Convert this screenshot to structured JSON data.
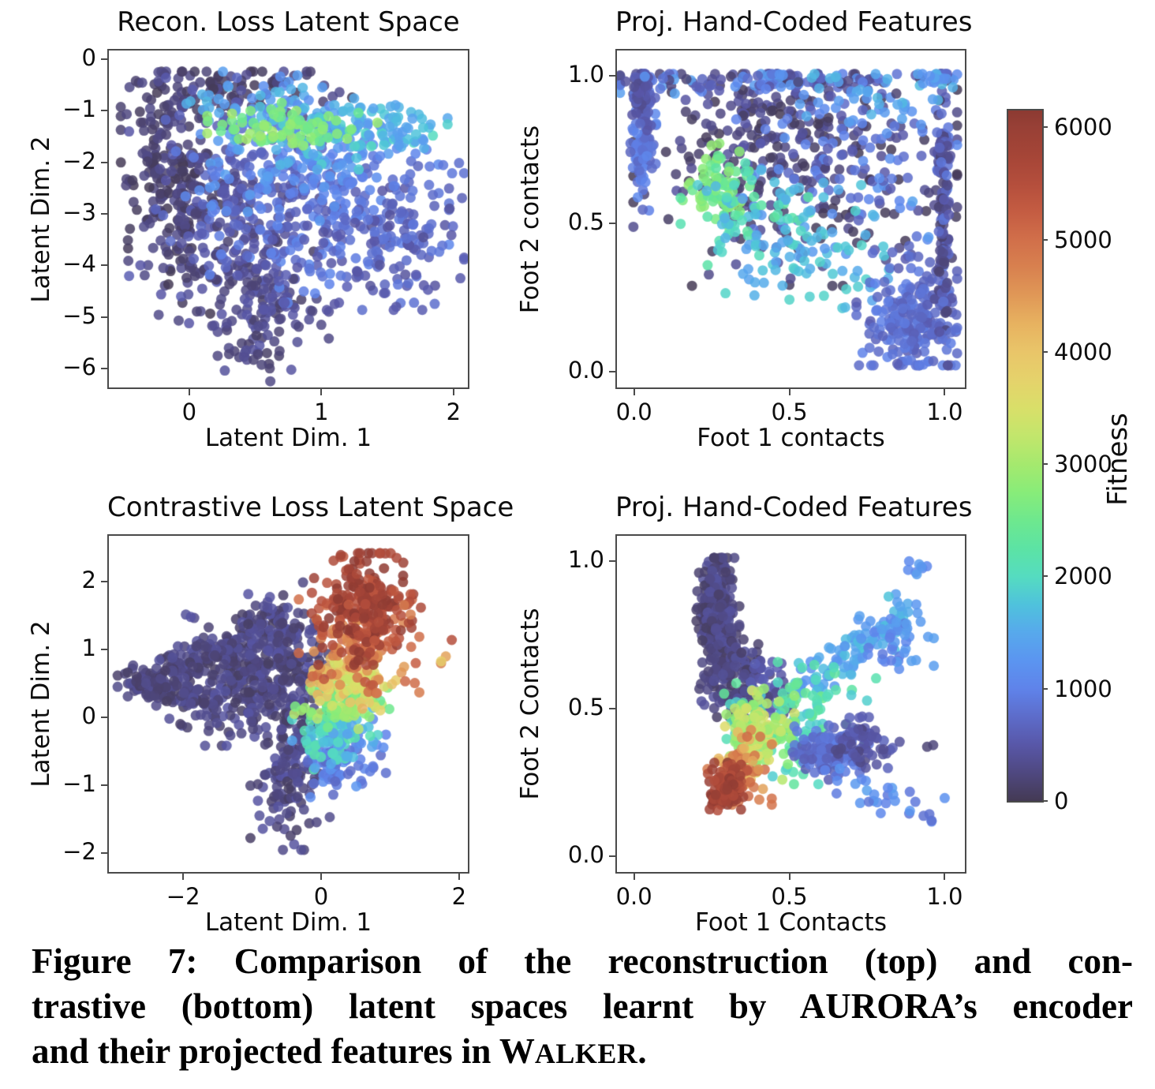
{
  "colorbar": {
    "label": "Fitness",
    "vmin": 0,
    "vmax": 6150,
    "tick_values": [
      0,
      1000,
      2000,
      3000,
      4000,
      5000,
      6000
    ],
    "tick_labels": [
      "0",
      "1000",
      "2000",
      "3000",
      "4000",
      "5000",
      "6000"
    ],
    "stops": [
      [
        0,
        "#443a54"
      ],
      [
        250,
        "#4f4880"
      ],
      [
        500,
        "#5857a8"
      ],
      [
        750,
        "#5d6cca"
      ],
      [
        1000,
        "#5f83ea"
      ],
      [
        1250,
        "#5b95f0"
      ],
      [
        1500,
        "#57a9ec"
      ],
      [
        1750,
        "#4fc2dc"
      ],
      [
        2000,
        "#55dcc0"
      ],
      [
        2250,
        "#5ce3a4"
      ],
      [
        2500,
        "#6ee88e"
      ],
      [
        2750,
        "#88ec79"
      ],
      [
        3000,
        "#a5e96e"
      ],
      [
        3250,
        "#c2e66c"
      ],
      [
        3500,
        "#d9df69"
      ],
      [
        3750,
        "#e5d26b"
      ],
      [
        4000,
        "#e9c569"
      ],
      [
        4250,
        "#e7b260"
      ],
      [
        4500,
        "#e09857"
      ],
      [
        4750,
        "#d8814f"
      ],
      [
        5000,
        "#d16f4a"
      ],
      [
        5250,
        "#c45c42"
      ],
      [
        5500,
        "#b44e3c"
      ],
      [
        5750,
        "#a54537"
      ],
      [
        6000,
        "#984036"
      ],
      [
        6150,
        "#8c3a32"
      ]
    ]
  },
  "caption": {
    "line1": "Figure 7: Comparison of the reconstruction (top) and con-",
    "line2": "trastive (bottom) latent spaces learnt by AURORA’s encoder",
    "line3_prefix": "and their projected features in ",
    "walker_cap": "W",
    "walker_rest": "ALKER",
    "line3_suffix": "."
  },
  "chart_data": [
    {
      "type": "scatter",
      "title": "Recon. Loss Latent Space",
      "xlabel": "Latent Dim. 1",
      "ylabel": "Latent Dim. 2",
      "xlim": [
        -0.62,
        2.12
      ],
      "ylim": [
        -6.4,
        0.2
      ],
      "xticks": {
        "values": [
          0,
          1,
          2
        ],
        "labels": [
          "0",
          "1",
          "2"
        ]
      },
      "yticks": {
        "values": [
          0,
          -1,
          -2,
          -3,
          -4,
          -5,
          -6
        ],
        "labels": [
          "0",
          "−1",
          "−2",
          "−3",
          "−4",
          "−5",
          "−6"
        ]
      },
      "clip": {
        "x": [
          -0.58,
          2.08
        ],
        "y": [
          -6.25,
          -0.24
        ]
      },
      "clusters": [
        {
          "n": 120,
          "cx": -0.15,
          "cy": -1.6,
          "sx": 0.16,
          "sy": 0.9,
          "f": [
            0,
            350
          ]
        },
        {
          "n": 120,
          "cx": -0.05,
          "cy": -3.0,
          "sx": 0.18,
          "sy": 0.9,
          "f": [
            0,
            350
          ]
        },
        {
          "n": 150,
          "cx": 0.35,
          "cy": -3.6,
          "sx": 0.35,
          "sy": 0.75,
          "f": [
            100,
            600
          ]
        },
        {
          "n": 90,
          "cx": 0.55,
          "cy": -5.1,
          "sx": 0.22,
          "sy": 0.5,
          "f": [
            100,
            500
          ]
        },
        {
          "n": 70,
          "cx": 0.45,
          "cy": -0.55,
          "sx": 0.35,
          "sy": 0.25,
          "f": [
            0,
            400
          ]
        },
        {
          "n": 110,
          "cx": 0.35,
          "cy": -2.2,
          "sx": 0.35,
          "sy": 0.8,
          "f": [
            300,
            800
          ]
        },
        {
          "n": 200,
          "cx": 1.0,
          "cy": -3.0,
          "sx": 0.42,
          "sy": 0.75,
          "f": [
            500,
            1100
          ]
        },
        {
          "n": 120,
          "cx": 1.45,
          "cy": -3.6,
          "sx": 0.28,
          "sy": 0.55,
          "f": [
            400,
            900
          ]
        },
        {
          "n": 110,
          "cx": 0.85,
          "cy": -2.1,
          "sx": 0.45,
          "sy": 0.45,
          "f": [
            900,
            1400
          ]
        },
        {
          "n": 80,
          "cx": 0.6,
          "cy": -0.95,
          "sx": 0.3,
          "sy": 0.35,
          "f": [
            1100,
            1700
          ]
        },
        {
          "n": 80,
          "cx": 1.15,
          "cy": -1.45,
          "sx": 0.35,
          "sy": 0.3,
          "f": [
            1400,
            2000
          ]
        },
        {
          "n": 40,
          "cx": 1.5,
          "cy": -1.35,
          "sx": 0.2,
          "sy": 0.25,
          "f": [
            1300,
            1800
          ]
        },
        {
          "n": 75,
          "cx": 0.78,
          "cy": -1.35,
          "sx": 0.28,
          "sy": 0.22,
          "f": [
            2400,
            3000
          ]
        },
        {
          "n": 12,
          "cx": 1.85,
          "cy": -2.35,
          "sx": 0.18,
          "sy": 0.25,
          "f": [
            600,
            900
          ]
        }
      ]
    },
    {
      "type": "scatter",
      "title": "Proj. Hand-Coded Features",
      "xlabel": "Foot 1 contacts",
      "ylabel": "Foot 2 contacts",
      "xlim": [
        -0.06,
        1.07
      ],
      "ylim": [
        -0.06,
        1.09
      ],
      "xticks": {
        "values": [
          0,
          0.5,
          1
        ],
        "labels": [
          "0.0",
          "0.5",
          "1.0"
        ]
      },
      "yticks": {
        "values": [
          0,
          0.5,
          1
        ],
        "labels": [
          "0.0",
          "0.5",
          "1.0"
        ]
      },
      "clip": {
        "x": [
          -0.045,
          1.04
        ],
        "y": [
          0.02,
          1.005
        ]
      },
      "clusters": [
        {
          "n": 240,
          "cx": 0.55,
          "cy": 0.68,
          "sx": 0.24,
          "sy": 0.17,
          "f": [
            0,
            450
          ]
        },
        {
          "n": 60,
          "cx": 0.35,
          "cy": 0.85,
          "sx": 0.12,
          "sy": 0.08,
          "f": [
            0,
            500
          ]
        },
        {
          "n": 110,
          "cx": 0.72,
          "cy": 0.72,
          "sx": 0.17,
          "sy": 0.16,
          "f": [
            500,
            1300
          ]
        },
        {
          "n": 100,
          "cx": 0.03,
          "cy": 0.82,
          "sx": 0.018,
          "sy": 0.12,
          "f": [
            650,
            1100
          ]
        },
        {
          "n": 60,
          "cx": 0.02,
          "cy": 0.93,
          "sx": 0.015,
          "sy": 0.05,
          "f": [
            300,
            700
          ]
        },
        {
          "n": 120,
          "cx": 0.45,
          "cy": 0.985,
          "sx": 0.27,
          "sy": 0.02,
          "f": [
            150,
            1400
          ]
        },
        {
          "n": 70,
          "cx": 0.27,
          "cy": 0.61,
          "sx": 0.05,
          "sy": 0.07,
          "f": [
            2300,
            2900
          ]
        },
        {
          "n": 60,
          "cx": 0.38,
          "cy": 0.52,
          "sx": 0.1,
          "sy": 0.08,
          "f": [
            1600,
            2300
          ]
        },
        {
          "n": 90,
          "cx": 0.58,
          "cy": 0.4,
          "sx": 0.16,
          "sy": 0.1,
          "f": [
            1300,
            2000
          ]
        },
        {
          "n": 210,
          "cx": 0.9,
          "cy": 0.18,
          "sx": 0.08,
          "sy": 0.1,
          "f": [
            550,
            1000
          ]
        },
        {
          "n": 140,
          "cx": 0.995,
          "cy": 0.55,
          "sx": 0.012,
          "sy": 0.27,
          "f": [
            100,
            900
          ]
        },
        {
          "n": 40,
          "cx": 0.75,
          "cy": 0.95,
          "sx": 0.12,
          "sy": 0.05,
          "f": [
            1200,
            1700
          ]
        },
        {
          "n": 12,
          "cx": 0.97,
          "cy": 0.99,
          "sx": 0.02,
          "sy": 0.01,
          "f": [
            1100,
            1600
          ]
        }
      ]
    },
    {
      "type": "scatter",
      "title": "Contrastive Loss Latent Space",
      "xlabel": "Latent Dim. 1",
      "ylabel": "Latent Dim. 2",
      "xlim": [
        -3.1,
        2.15
      ],
      "ylim": [
        -2.3,
        2.7
      ],
      "xticks": {
        "values": [
          -2,
          0,
          2
        ],
        "labels": [
          "−2",
          "0",
          "2"
        ]
      },
      "yticks": {
        "values": [
          2,
          1,
          0,
          -1,
          -2
        ],
        "labels": [
          "2",
          "1",
          "0",
          "−1",
          "−2"
        ]
      },
      "clip": {
        "x": [
          -2.95,
          2.05
        ],
        "y": [
          -1.95,
          2.42
        ]
      },
      "clusters": [
        {
          "n": 320,
          "cx": -1.05,
          "cy": 0.55,
          "sx": 0.5,
          "sy": 0.42,
          "f": [
            80,
            480
          ]
        },
        {
          "n": 70,
          "line": [
            -2.7,
            0.5,
            -1.2,
            1.1
          ],
          "jx": 0.12,
          "jy": 0.12,
          "f": [
            80,
            450
          ]
        },
        {
          "n": 50,
          "line": [
            -2.7,
            0.45,
            -1.3,
            0.1
          ],
          "jx": 0.12,
          "jy": 0.1,
          "f": [
            80,
            450
          ]
        },
        {
          "n": 60,
          "cx": -2.35,
          "cy": 0.48,
          "sx": 0.28,
          "sy": 0.14,
          "f": [
            80,
            400
          ]
        },
        {
          "n": 90,
          "cx": -0.6,
          "cy": 1.3,
          "sx": 0.25,
          "sy": 0.3,
          "f": [
            80,
            480
          ]
        },
        {
          "n": 130,
          "cx": -0.45,
          "cy": -0.85,
          "sx": 0.25,
          "sy": 0.5,
          "f": [
            80,
            480
          ]
        },
        {
          "n": 60,
          "cx": -0.35,
          "cy": 0.1,
          "sx": 0.35,
          "sy": 0.3,
          "f": [
            80,
            480
          ]
        },
        {
          "n": 80,
          "cx": 0.25,
          "cy": -0.6,
          "sx": 0.3,
          "sy": 0.25,
          "f": [
            700,
            1300
          ]
        },
        {
          "n": 90,
          "cx": 0.2,
          "cy": -0.2,
          "sx": 0.27,
          "sy": 0.25,
          "f": [
            1400,
            2200
          ]
        },
        {
          "n": 95,
          "cx": 0.3,
          "cy": 0.25,
          "sx": 0.3,
          "sy": 0.2,
          "f": [
            2400,
            3200
          ]
        },
        {
          "n": 90,
          "cx": 0.35,
          "cy": 0.6,
          "sx": 0.32,
          "sy": 0.22,
          "f": [
            3300,
            4300
          ]
        },
        {
          "n": 130,
          "cx": 0.55,
          "cy": 1.05,
          "sx": 0.38,
          "sy": 0.3,
          "f": [
            4400,
            5400
          ]
        },
        {
          "n": 210,
          "cx": 0.6,
          "cy": 1.65,
          "sx": 0.32,
          "sy": 0.38,
          "f": [
            5300,
            6200
          ]
        },
        {
          "n": 8,
          "cx": 1.25,
          "cy": 1.4,
          "sx": 0.28,
          "sy": 0.3,
          "f": [
            4800,
            5800
          ]
        },
        {
          "n": 3,
          "cx": 1.75,
          "cy": 0.88,
          "sx": 0.15,
          "sy": 0.1,
          "f": [
            3800,
            4900
          ]
        }
      ]
    },
    {
      "type": "scatter",
      "title": "Proj. Hand-Coded Features",
      "xlabel": "Foot 1 Contacts",
      "ylabel": "Foot 2 Contacts",
      "xlim": [
        -0.06,
        1.07
      ],
      "ylim": [
        -0.06,
        1.09
      ],
      "xticks": {
        "values": [
          0,
          0.5,
          1
        ],
        "labels": [
          "0.0",
          "0.5",
          "1.0"
        ]
      },
      "yticks": {
        "values": [
          0,
          0.5,
          1
        ],
        "labels": [
          "0.0",
          "0.5",
          "1.0"
        ]
      },
      "clip": {
        "x": [
          0.1,
          1.0
        ],
        "y": [
          0.05,
          1.01
        ]
      },
      "clusters": [
        {
          "n": 290,
          "cx": 0.27,
          "cy": 0.8,
          "sx": 0.03,
          "sy": 0.12,
          "f": [
            80,
            450
          ]
        },
        {
          "n": 100,
          "cx": 0.33,
          "cy": 0.6,
          "sx": 0.045,
          "sy": 0.07,
          "f": [
            80,
            450
          ]
        },
        {
          "n": 60,
          "cx": 0.42,
          "cy": 0.55,
          "sx": 0.05,
          "sy": 0.06,
          "f": [
            200,
            600
          ]
        },
        {
          "n": 110,
          "line": [
            0.52,
            0.55,
            0.88,
            0.85
          ],
          "jx": 0.035,
          "jy": 0.035,
          "f": [
            1200,
            1800
          ]
        },
        {
          "n": 35,
          "cx": 0.85,
          "cy": 0.72,
          "sx": 0.05,
          "sy": 0.05,
          "f": [
            900,
            1400
          ]
        },
        {
          "n": 8,
          "cx": 0.91,
          "cy": 0.975,
          "sx": 0.03,
          "sy": 0.015,
          "f": [
            1000,
            1400
          ]
        },
        {
          "n": 12,
          "cx": 0.6,
          "cy": 0.52,
          "sx": 0.16,
          "sy": 0.08,
          "f": [
            1900,
            2600
          ]
        },
        {
          "n": 110,
          "cx": 0.52,
          "cy": 0.45,
          "sx": 0.1,
          "sy": 0.09,
          "f": [
            1800,
            2500
          ]
        },
        {
          "n": 140,
          "cx": 0.39,
          "cy": 0.42,
          "sx": 0.055,
          "sy": 0.08,
          "f": [
            2700,
            3600
          ]
        },
        {
          "n": 130,
          "cx": 0.63,
          "cy": 0.35,
          "sx": 0.055,
          "sy": 0.04,
          "f": [
            550,
            1000
          ]
        },
        {
          "n": 55,
          "cx": 0.74,
          "cy": 0.38,
          "sx": 0.05,
          "sy": 0.04,
          "f": [
            250,
            650
          ]
        },
        {
          "n": 30,
          "line": [
            0.68,
            0.28,
            0.93,
            0.13
          ],
          "jx": 0.04,
          "jy": 0.03,
          "f": [
            800,
            1400
          ]
        },
        {
          "n": 2,
          "cx": 0.95,
          "cy": 0.38,
          "sx": 0.01,
          "sy": 0.01,
          "f": [
            150,
            300
          ]
        },
        {
          "n": 70,
          "cx": 0.34,
          "cy": 0.3,
          "sx": 0.045,
          "sy": 0.055,
          "f": [
            4100,
            5100
          ]
        },
        {
          "n": 120,
          "cx": 0.3,
          "cy": 0.235,
          "sx": 0.028,
          "sy": 0.035,
          "f": [
            5400,
            6200
          ]
        }
      ]
    }
  ]
}
